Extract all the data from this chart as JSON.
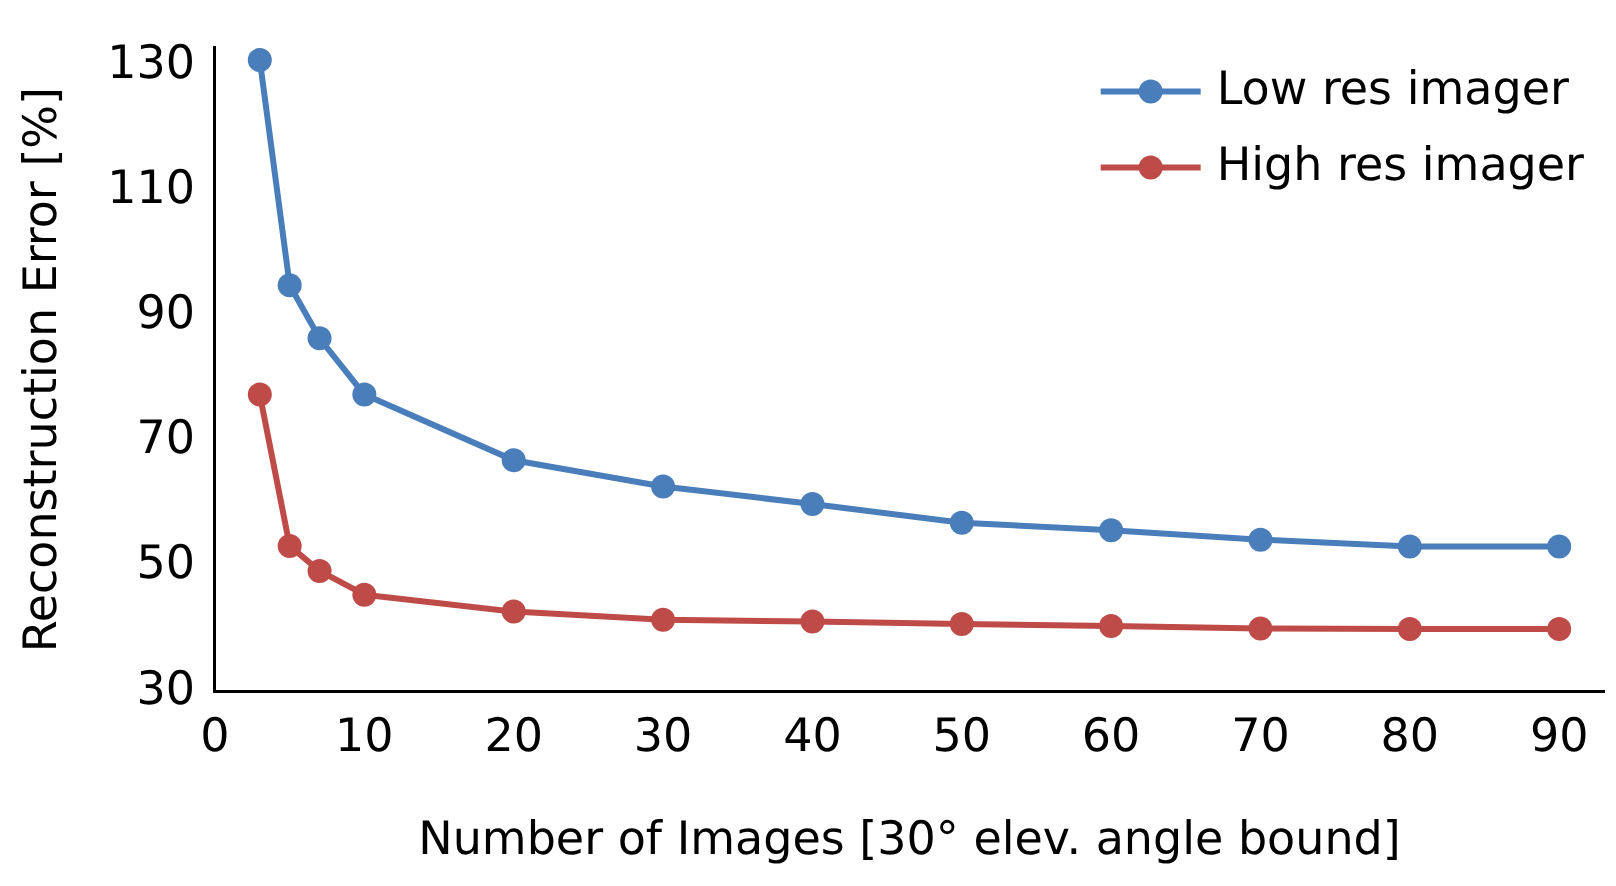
{
  "chart_data": {
    "type": "line",
    "xlabel": "Number of Images [30° elev. angle bound]",
    "ylabel": "Reconstruction Error [%]",
    "x": [
      3,
      5,
      7,
      10,
      20,
      30,
      40,
      50,
      60,
      70,
      80,
      90
    ],
    "series": [
      {
        "name": "Low res imager",
        "color": "#4a7ebb",
        "values": [
          131,
          95,
          86.5,
          77.5,
          67,
          62.8,
          60,
          57,
          55.8,
          54.3,
          53.2,
          53.2
        ]
      },
      {
        "name": "High res imager",
        "color": "#be4b48",
        "values": [
          77.5,
          53.3,
          49.3,
          45.5,
          42.8,
          41.5,
          41.2,
          40.8,
          40.5,
          40.1,
          40,
          40
        ]
      }
    ],
    "xlim": [
      0,
      93
    ],
    "xticks": [
      0,
      10,
      20,
      30,
      40,
      50,
      60,
      70,
      80,
      90
    ],
    "ylim": [
      30,
      133
    ],
    "yticks": [
      30,
      50,
      70,
      90,
      110,
      130
    ],
    "grid": false,
    "legend": "top right",
    "marker": "circle",
    "line_style": "solid"
  }
}
